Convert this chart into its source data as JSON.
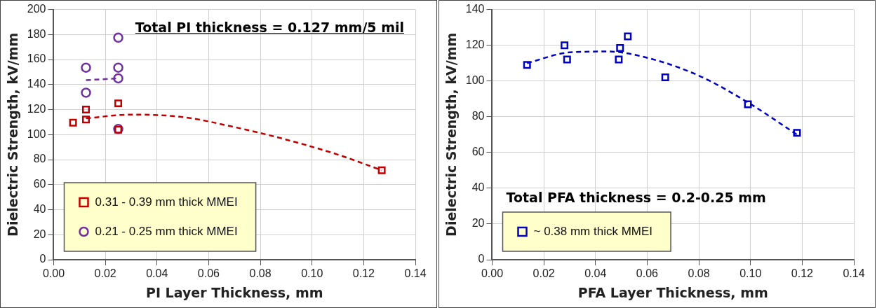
{
  "chart_data": [
    {
      "type": "scatter",
      "xlabel": "PI Layer Thickness, mm",
      "ylabel": "Dielectric Strength, kV/mm",
      "annotations": [
        "Total PI thickness = 0.127 mm/5 mil"
      ],
      "xlim": [
        0,
        0.14
      ],
      "xticks": [
        {
          "value": 0,
          "label": "0.00"
        },
        {
          "value": 0.02,
          "label": "0.02"
        },
        {
          "value": 0.04,
          "label": "0.04"
        },
        {
          "value": 0.06,
          "label": "0.06"
        },
        {
          "value": 0.08,
          "label": "0.08"
        },
        {
          "value": 0.1,
          "label": "0.10"
        },
        {
          "value": 0.12,
          "label": "0.12"
        },
        {
          "value": 0.14,
          "label": "0.14"
        }
      ],
      "ylim": [
        0,
        200
      ],
      "yticks": [
        0,
        20,
        40,
        60,
        80,
        100,
        120,
        140,
        160,
        180,
        200
      ],
      "grid": true,
      "legend": "bottom left",
      "series": [
        {
          "name": "0.31 - 0.39 mm thick MMEI",
          "color": "#c00000",
          "marker": "square",
          "x": [
            0.0075,
            0.0125,
            0.0125,
            0.025,
            0.025,
            0.127
          ],
          "values": [
            109.5,
            120,
            112,
            125,
            104,
            71.5
          ]
        },
        {
          "name": "0.21 - 0.25 mm thick MMEI",
          "color": "#7030a0",
          "marker": "circle",
          "x": [
            0.0125,
            0.0125,
            0.025,
            0.025,
            0.025,
            0.025
          ],
          "values": [
            153.5,
            133.5,
            177.5,
            153.5,
            145,
            104.5
          ]
        },
        {
          "type": "line",
          "color": "#c00000",
          "marker": "none",
          "line_style": "dashed",
          "x": [
            0.0125,
            0.03,
            0.05,
            0.07,
            0.09,
            0.11,
            0.127
          ],
          "values": [
            113,
            116,
            114,
            106,
            96,
            84,
            71.5
          ]
        },
        {
          "type": "line",
          "color": "#7030a0",
          "marker": "none",
          "line_style": "dashed",
          "x": [
            0.0125,
            0.025
          ],
          "values": [
            143.5,
            145
          ]
        }
      ]
    },
    {
      "type": "scatter",
      "xlabel": "PFA Layer Thickness, mm",
      "ylabel": "Dielectric Strength, kV/mm",
      "annotations": [
        "Total PFA thickness = 0.2-0.25 mm"
      ],
      "xlim": [
        0,
        0.14
      ],
      "xticks": [
        {
          "value": 0,
          "label": "0.00"
        },
        {
          "value": 0.02,
          "label": "0.02"
        },
        {
          "value": 0.04,
          "label": "0.04"
        },
        {
          "value": 0.06,
          "label": "0.06"
        },
        {
          "value": 0.08,
          "label": "0.08"
        },
        {
          "value": 0.1,
          "label": "0.10"
        },
        {
          "value": 0.12,
          "label": "0.12"
        },
        {
          "value": 0.14,
          "label": "0.14"
        }
      ],
      "ylim": [
        0,
        140
      ],
      "yticks": [
        0,
        20,
        40,
        60,
        80,
        100,
        120,
        140
      ],
      "grid": true,
      "legend": "bottom left",
      "series": [
        {
          "name": "~ 0.38 mm thick MMEI",
          "color": "#0000c0",
          "marker": "square",
          "x": [
            0.0135,
            0.028,
            0.029,
            0.049,
            0.0495,
            0.0525,
            0.067,
            0.099,
            0.118
          ],
          "values": [
            109,
            120,
            112,
            112,
            118.5,
            125,
            102,
            87,
            71
          ]
        },
        {
          "type": "line",
          "color": "#0000c0",
          "marker": "none",
          "line_style": "dashed",
          "x": [
            0.0135,
            0.03,
            0.045,
            0.06,
            0.08,
            0.099,
            0.118
          ],
          "values": [
            110,
            116,
            116.5,
            113,
            103,
            88,
            70
          ]
        }
      ]
    }
  ]
}
